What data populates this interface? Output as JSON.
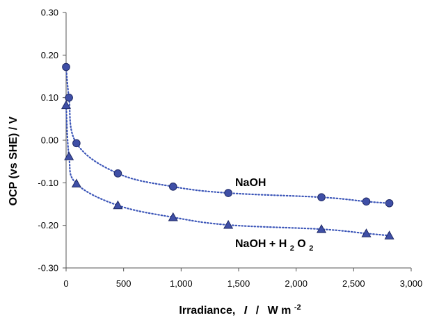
{
  "chart_data": {
    "type": "scatter",
    "title": "",
    "xlabel": {
      "main": "Irradiance,",
      "symbol": "I",
      "sep": "/",
      "unit": "W m",
      "unit_exp": "-2"
    },
    "ylabel": "OCP (vs SHE)  /  V",
    "xlim": [
      0,
      3000
    ],
    "ylim": [
      -0.3,
      0.3
    ],
    "xticks": [
      0,
      500,
      1000,
      1500,
      2000,
      2500,
      3000
    ],
    "xtick_labels": [
      "0",
      "500",
      "1,000",
      "1,500",
      "2,000",
      "2,500",
      "3,000"
    ],
    "yticks": [
      -0.3,
      -0.2,
      -0.1,
      0.0,
      0.1,
      0.2,
      0.3
    ],
    "ytick_labels": [
      "-0.30",
      "-0.20",
      "-0.10",
      "0.00",
      "0.10",
      "0.20",
      "0.30"
    ],
    "grid": false,
    "series": [
      {
        "name": "NaOH",
        "marker": "circle",
        "color": "#3f4fa6",
        "trend_color": "#3b55b8",
        "x": [
          0,
          25,
          90,
          450,
          930,
          1410,
          2220,
          2610,
          2810
        ],
        "y": [
          0.172,
          0.1,
          -0.007,
          -0.078,
          -0.109,
          -0.124,
          -0.134,
          -0.144,
          -0.148
        ]
      },
      {
        "name": "NaOH + H2O2",
        "name_base": "NaOH + H",
        "name_sub1": "2",
        "name_mid": "O",
        "name_sub2": "2",
        "marker": "triangle",
        "color": "#3f4fa6",
        "trend_color": "#3b55b8",
        "x": [
          0,
          25,
          90,
          450,
          930,
          1410,
          2220,
          2610,
          2810
        ],
        "y": [
          0.082,
          -0.038,
          -0.102,
          -0.153,
          -0.181,
          -0.199,
          -0.209,
          -0.219,
          -0.224
        ]
      }
    ]
  }
}
